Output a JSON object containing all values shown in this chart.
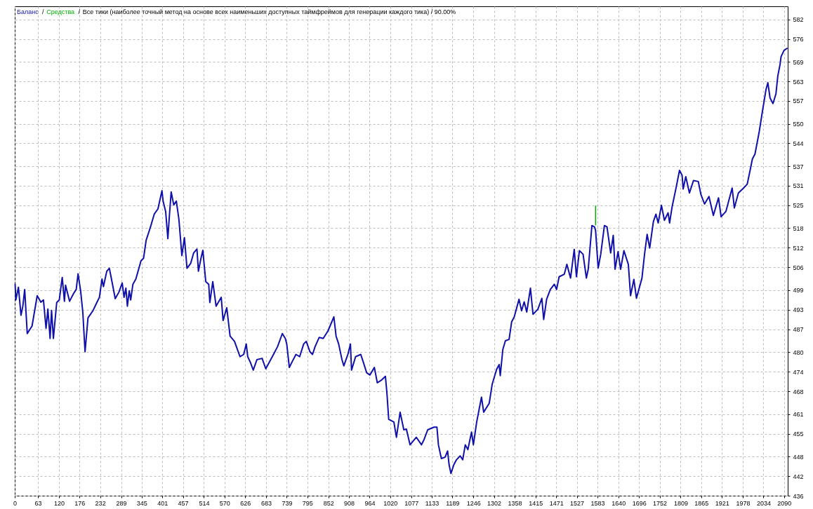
{
  "chart_data": {
    "type": "line",
    "title": "Все тики (наиболее точный метод на основе всех наименьших доступных таймфреймов для генерации каждого тика) / 90.00%",
    "annotations": [
      "/",
      "/"
    ],
    "legend": "top left",
    "grid": true,
    "xlim": [
      0,
      2100
    ],
    "xticks": [
      0,
      63,
      120,
      176,
      232,
      289,
      345,
      401,
      457,
      514,
      570,
      626,
      683,
      739,
      795,
      852,
      908,
      964,
      1020,
      1077,
      1133,
      1189,
      1246,
      1302,
      1358,
      1415,
      1471,
      1527,
      1583,
      1640,
      1696,
      1752,
      1809,
      1865,
      1921,
      1978,
      2034,
      2090
    ],
    "ylim": [
      436,
      586
    ],
    "yticks": [
      436,
      442,
      448,
      455,
      461,
      468,
      474,
      480,
      487,
      493,
      499,
      506,
      512,
      518,
      525,
      531,
      537,
      544,
      550,
      557,
      563,
      569,
      576,
      582
    ],
    "series": [
      {
        "name": "Баланс",
        "color": "#1010aa",
        "x": [
          1,
          3,
          10,
          17,
          22,
          27,
          34,
          47,
          61,
          71,
          78,
          85,
          90,
          96,
          100,
          105,
          114,
          121,
          129,
          135,
          138,
          149,
          160,
          167,
          172,
          179,
          185,
          191,
          199,
          213,
          223,
          230,
          237,
          241,
          250,
          257,
          262,
          273,
          283,
          292,
          297,
          302,
          306,
          311,
          315,
          321,
          329,
          343,
          350,
          357,
          364,
          371,
          379,
          389,
          400,
          403,
          410,
          416,
          420,
          425,
          432,
          439,
          446,
          454,
          461,
          468,
          478,
          486,
          495,
          499,
          506,
          511,
          519,
          527,
          530,
          538,
          547,
          561,
          566,
          576,
          585,
          597,
          612,
          622,
          629,
          633,
          640,
          648,
          658,
          672,
          682,
          703,
          714,
          727,
          735,
          739,
          746,
          753,
          764,
          774,
          785,
          792,
          802,
          809,
          816,
          827,
          838,
          851,
          867,
          873,
          880,
          889,
          894,
          905,
          912,
          915,
          926,
          940,
          947,
          956,
          965,
          977,
          985,
          997,
          1007,
          1011,
          1016,
          1030,
          1037,
          1047,
          1057,
          1064,
          1074,
          1091,
          1105,
          1112,
          1122,
          1139,
          1147,
          1151,
          1159,
          1169,
          1176,
          1180,
          1185,
          1193,
          1200,
          1210,
          1217,
          1224,
          1231,
          1241,
          1246,
          1255,
          1268,
          1274,
          1289,
          1297,
          1309,
          1316,
          1319,
          1326,
          1333,
          1343,
          1350,
          1357,
          1370,
          1377,
          1384,
          1391,
          1401,
          1408,
          1421,
          1432,
          1437,
          1445,
          1455,
          1466,
          1472,
          1479,
          1493,
          1500,
          1510,
          1520,
          1526,
          1534,
          1544,
          1553,
          1558,
          1568,
          1575,
          1578,
          1585,
          1592,
          1602,
          1609,
          1619,
          1626,
          1631,
          1639,
          1646,
          1655,
          1667,
          1673,
          1682,
          1689,
          1704,
          1711,
          1718,
          1725,
          1735,
          1742,
          1748,
          1757,
          1765,
          1775,
          1779,
          1786,
          1796,
          1806,
          1813,
          1816,
          1823,
          1833,
          1844,
          1857,
          1864,
          1874,
          1886,
          1898,
          1912,
          1919,
          1932,
          1949,
          1955,
          1966,
          1980,
          1990,
          1997,
          2004,
          2011,
          2022,
          2031,
          2041,
          2046,
          2052,
          2060,
          2068,
          2073,
          2079,
          2082,
          2090,
          2098
        ],
        "values": [
          500.8,
          496.0,
          499.9,
          491.3,
          494.1,
          499.2,
          485.7,
          488.0,
          497.3,
          495.3,
          496.0,
          487.3,
          493.2,
          484.2,
          492.8,
          484.2,
          495.2,
          496.0,
          502.9,
          495.6,
          500.5,
          495.6,
          498.0,
          499.2,
          504.0,
          498.8,
          492.1,
          480.1,
          490.5,
          492.8,
          495.2,
          496.8,
          502.4,
          500.1,
          504.8,
          505.7,
          502.9,
          496.4,
          498.4,
          501.2,
          496.8,
          499.6,
          494.1,
          498.8,
          496.0,
          500.8,
          502.4,
          508.0,
          508.8,
          514.3,
          516.7,
          519.2,
          522.3,
          523.9,
          529.5,
          526.3,
          523.1,
          514.8,
          521.6,
          529.1,
          525.1,
          526.3,
          520.7,
          509.6,
          515.1,
          505.7,
          507.2,
          510.4,
          511.6,
          504.8,
          508.8,
          511.2,
          501.6,
          500.8,
          495.2,
          501.6,
          494.1,
          496.8,
          489.7,
          493.6,
          484.9,
          483.3,
          478.6,
          479.3,
          482.5,
          478.6,
          476.9,
          474.5,
          477.7,
          478.1,
          474.9,
          479.3,
          481.7,
          485.7,
          484.2,
          482.5,
          475.3,
          476.9,
          479.3,
          478.6,
          482.5,
          483.3,
          480.1,
          479.3,
          481.7,
          484.5,
          484.2,
          486.5,
          490.8,
          484.9,
          482.5,
          477.7,
          475.8,
          479.3,
          482.5,
          474.5,
          478.6,
          479.3,
          476.9,
          473.7,
          473.0,
          475.3,
          470.6,
          471.5,
          472.6,
          467.6,
          459.4,
          458.6,
          453.9,
          461.6,
          456.2,
          456.4,
          451.6,
          453.9,
          451.6,
          453.2,
          456.2,
          457.0,
          457.0,
          451.6,
          447.4,
          447.8,
          449.7,
          445.5,
          442.8,
          445.5,
          447.0,
          448.2,
          447.0,
          451.6,
          450.1,
          455.5,
          451.6,
          458.6,
          466.2,
          461.6,
          464.3,
          470.1,
          474.7,
          476.2,
          472.8,
          480.8,
          483.5,
          483.9,
          489.3,
          490.8,
          496.2,
          492.7,
          495.4,
          492.3,
          499.6,
          491.6,
          493.1,
          496.5,
          490.0,
          496.2,
          499.2,
          500.8,
          499.2,
          503.1,
          503.9,
          506.9,
          502.7,
          511.5,
          503.1,
          511.1,
          510.0,
          502.7,
          505.4,
          518.8,
          518.4,
          517.3,
          505.8,
          510.0,
          518.8,
          518.4,
          510.4,
          515.8,
          505.4,
          510.8,
          505.4,
          511.1,
          506.9,
          497.3,
          502.3,
          496.5,
          502.7,
          510.0,
          516.1,
          511.9,
          520.0,
          522.3,
          519.6,
          525.0,
          520.4,
          522.7,
          519.6,
          524.6,
          530.0,
          535.7,
          534.2,
          530.0,
          533.8,
          528.8,
          532.6,
          532.3,
          528.4,
          525.4,
          527.7,
          521.9,
          527.3,
          521.5,
          523.1,
          530.3,
          524.2,
          528.8,
          530.3,
          531.5,
          535.3,
          539.2,
          540.7,
          547.2,
          553.6,
          560.5,
          562.6,
          557.9,
          556.2,
          559.2,
          564.6,
          568.1,
          570.6,
          572.5,
          573.1
        ]
      },
      {
        "name": "Средства",
        "color": "#00b000",
        "x": [
          1578,
          1578
        ],
        "values": [
          519.0,
          524.8
        ]
      }
    ]
  }
}
